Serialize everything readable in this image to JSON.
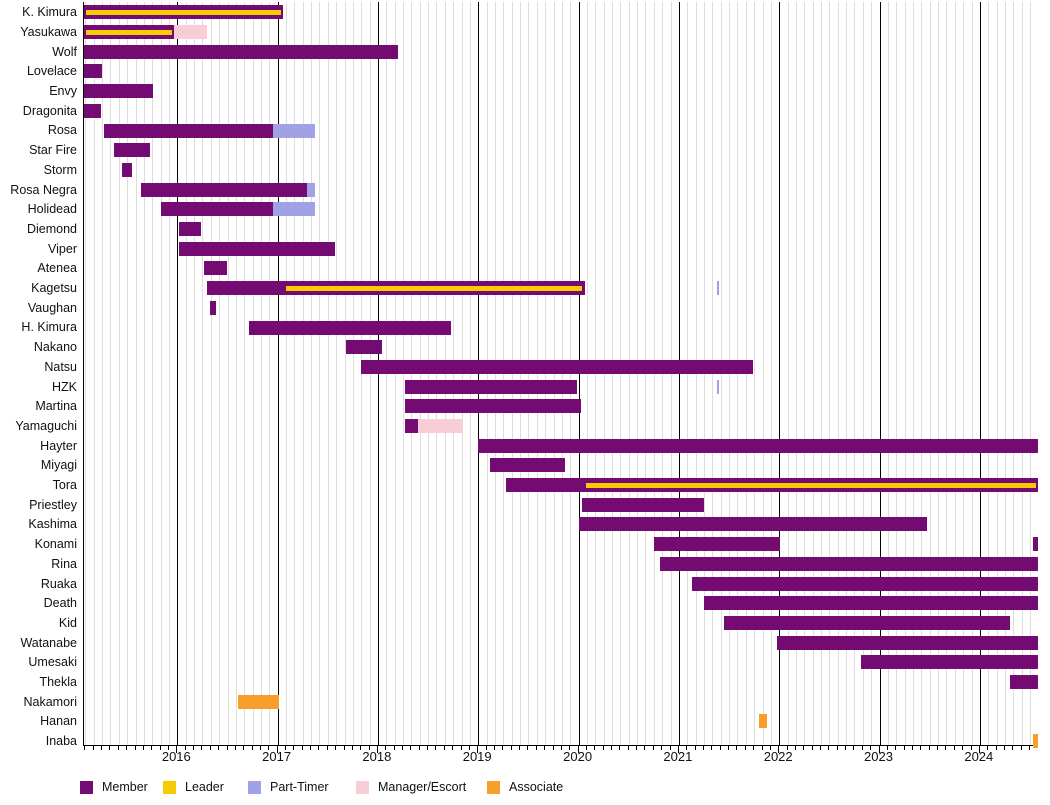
{
  "chart_data": {
    "type": "gantt",
    "title": "",
    "x_axis": {
      "min": 2015.07,
      "max": 2024.58,
      "year_labels": [
        "2016",
        "2017",
        "2018",
        "2019",
        "2020",
        "2021",
        "2022",
        "2023",
        "2024"
      ],
      "minor_tick": "monthly",
      "grid": true
    },
    "legend_position": "bottom",
    "legend": [
      {
        "role": "member",
        "label": "Member",
        "color": "#730B73"
      },
      {
        "role": "leader",
        "label": "Leader",
        "color": "#F7CB03"
      },
      {
        "role": "part_timer",
        "label": "Part-Timer",
        "color": "#A1A1E6"
      },
      {
        "role": "manager",
        "label": "Manager/Escort",
        "color": "#F8CDD5"
      },
      {
        "role": "associate",
        "label": "Associate",
        "color": "#F89E2B"
      }
    ],
    "rows": [
      {
        "label": "K. Kimura",
        "bars": [
          {
            "role": "member",
            "start": 2015.07,
            "end": 2017.05
          }
        ],
        "leader": [
          {
            "start": 2015.07,
            "end": 2017.05
          }
        ]
      },
      {
        "label": "Yasukawa",
        "bars": [
          {
            "role": "member",
            "start": 2015.07,
            "end": 2015.97
          },
          {
            "role": "manager",
            "start": 2015.97,
            "end": 2016.3
          }
        ],
        "leader": [
          {
            "start": 2015.07,
            "end": 2015.97
          }
        ]
      },
      {
        "label": "Wolf",
        "bars": [
          {
            "role": "member",
            "start": 2015.07,
            "end": 2018.2
          }
        ]
      },
      {
        "label": "Lovelace",
        "bars": [
          {
            "role": "member",
            "start": 2015.07,
            "end": 2015.25
          }
        ]
      },
      {
        "label": "Envy",
        "bars": [
          {
            "role": "member",
            "start": 2015.07,
            "end": 2015.76
          }
        ]
      },
      {
        "label": "Dragonita",
        "bars": [
          {
            "role": "member",
            "start": 2015.07,
            "end": 2015.24
          }
        ]
      },
      {
        "label": "Rosa",
        "bars": [
          {
            "role": "member",
            "start": 2015.27,
            "end": 2016.95
          },
          {
            "role": "part_timer",
            "start": 2016.95,
            "end": 2017.37
          }
        ]
      },
      {
        "label": "Star Fire",
        "bars": [
          {
            "role": "member",
            "start": 2015.37,
            "end": 2015.73
          }
        ]
      },
      {
        "label": "Storm",
        "bars": [
          {
            "role": "member",
            "start": 2015.45,
            "end": 2015.55
          }
        ]
      },
      {
        "label": "Rosa Negra",
        "bars": [
          {
            "role": "member",
            "start": 2015.64,
            "end": 2017.29
          },
          {
            "role": "part_timer",
            "start": 2017.29,
            "end": 2017.37
          }
        ]
      },
      {
        "label": "Holidead",
        "bars": [
          {
            "role": "member",
            "start": 2015.84,
            "end": 2016.95
          },
          {
            "role": "part_timer",
            "start": 2016.95,
            "end": 2017.37
          }
        ]
      },
      {
        "label": "Diemond",
        "bars": [
          {
            "role": "member",
            "start": 2016.02,
            "end": 2016.24
          }
        ]
      },
      {
        "label": "Viper",
        "bars": [
          {
            "role": "member",
            "start": 2016.02,
            "end": 2017.57
          }
        ]
      },
      {
        "label": "Atenea",
        "bars": [
          {
            "role": "member",
            "start": 2016.27,
            "end": 2016.5
          }
        ]
      },
      {
        "label": "Kagetsu",
        "bars": [
          {
            "role": "member",
            "start": 2016.3,
            "end": 2020.06
          },
          {
            "role": "part_timer",
            "start": 2021.38,
            "end": 2021.4
          }
        ],
        "leader": [
          {
            "start": 2017.06,
            "end": 2020.06
          }
        ]
      },
      {
        "label": "Vaughan",
        "bars": [
          {
            "role": "member",
            "start": 2016.33,
            "end": 2016.39
          }
        ]
      },
      {
        "label": "H. Kimura",
        "bars": [
          {
            "role": "member",
            "start": 2016.71,
            "end": 2018.73
          }
        ]
      },
      {
        "label": "Nakano",
        "bars": [
          {
            "role": "member",
            "start": 2017.68,
            "end": 2018.04
          }
        ]
      },
      {
        "label": "Natsu",
        "bars": [
          {
            "role": "member",
            "start": 2017.83,
            "end": 2021.74
          }
        ]
      },
      {
        "label": "HZK",
        "bars": [
          {
            "role": "member",
            "start": 2018.27,
            "end": 2019.98
          },
          {
            "role": "part_timer",
            "start": 2021.38,
            "end": 2021.4
          }
        ]
      },
      {
        "label": "Martina",
        "bars": [
          {
            "role": "member",
            "start": 2018.27,
            "end": 2020.02
          }
        ]
      },
      {
        "label": "Yamaguchi",
        "bars": [
          {
            "role": "member",
            "start": 2018.27,
            "end": 2018.4
          },
          {
            "role": "manager",
            "start": 2018.4,
            "end": 2018.84
          }
        ]
      },
      {
        "label": "Hayter",
        "bars": [
          {
            "role": "member",
            "start": 2019.0,
            "end": 2024.58
          }
        ]
      },
      {
        "label": "Miyagi",
        "bars": [
          {
            "role": "member",
            "start": 2019.12,
            "end": 2019.87
          }
        ]
      },
      {
        "label": "Tora",
        "bars": [
          {
            "role": "member",
            "start": 2019.28,
            "end": 2024.58
          }
        ],
        "leader": [
          {
            "start": 2020.05,
            "end": 2024.58
          }
        ]
      },
      {
        "label": "Priestley",
        "bars": [
          {
            "role": "member",
            "start": 2020.03,
            "end": 2021.25
          }
        ]
      },
      {
        "label": "Kashima",
        "bars": [
          {
            "role": "member",
            "start": 2020.0,
            "end": 2023.47
          }
        ]
      },
      {
        "label": "Konami",
        "bars": [
          {
            "role": "member",
            "start": 2020.75,
            "end": 2022.01
          },
          {
            "role": "member",
            "start": 2024.53,
            "end": 2024.58
          }
        ]
      },
      {
        "label": "Rina",
        "bars": [
          {
            "role": "member",
            "start": 2020.81,
            "end": 2024.58
          }
        ]
      },
      {
        "label": "Ruaka",
        "bars": [
          {
            "role": "member",
            "start": 2021.13,
            "end": 2024.58
          }
        ]
      },
      {
        "label": "Death",
        "bars": [
          {
            "role": "member",
            "start": 2021.25,
            "end": 2024.58
          }
        ]
      },
      {
        "label": "Kid",
        "bars": [
          {
            "role": "member",
            "start": 2021.45,
            "end": 2024.3
          }
        ]
      },
      {
        "label": "Watanabe",
        "bars": [
          {
            "role": "member",
            "start": 2021.98,
            "end": 2024.58
          }
        ]
      },
      {
        "label": "Umesaki",
        "bars": [
          {
            "role": "member",
            "start": 2022.82,
            "end": 2024.58
          }
        ]
      },
      {
        "label": "Thekla",
        "bars": [
          {
            "role": "member",
            "start": 2024.3,
            "end": 2024.58
          }
        ]
      },
      {
        "label": "Nakamori",
        "bars": [
          {
            "role": "associate",
            "start": 2016.6,
            "end": 2017.01
          }
        ]
      },
      {
        "label": "Hanan",
        "bars": [
          {
            "role": "associate",
            "start": 2021.8,
            "end": 2021.88
          }
        ]
      },
      {
        "label": "Inaba",
        "bars": [
          {
            "role": "associate",
            "start": 2024.53,
            "end": 2024.58
          }
        ]
      }
    ]
  },
  "colors": {
    "background": "#FFFFFF",
    "grid_minor": "#DDDDDD",
    "grid_major": "#000000",
    "axis": "#000000",
    "text": "#111111"
  }
}
